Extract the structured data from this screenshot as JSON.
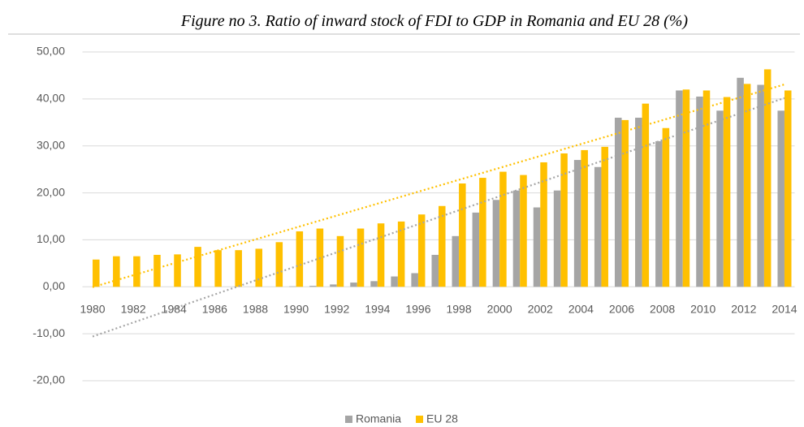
{
  "chart_data": {
    "type": "bar",
    "title": "Figure no 3. Ratio of inward stock of FDI to GDP in Romania and EU 28 (%)",
    "categories": [
      "1980",
      null,
      "1982",
      null,
      "1984",
      null,
      "1986",
      null,
      "1988",
      null,
      "1990",
      null,
      "1992",
      null,
      "1994",
      null,
      "1996",
      null,
      "1998",
      null,
      "2000",
      null,
      "2002",
      null,
      "2004",
      null,
      "2006",
      null,
      "2008",
      null,
      "2010",
      null,
      "2012",
      null,
      "2014"
    ],
    "series": [
      {
        "name": "Romania",
        "color": "#a5a5a5",
        "values": [
          0,
          0,
          0,
          0,
          0,
          0,
          0,
          0,
          0,
          0,
          0.1,
          0.2,
          0.5,
          0.9,
          1.2,
          2.2,
          2.9,
          6.8,
          10.8,
          15.8,
          18.5,
          20.5,
          16.9,
          20.5,
          27,
          25.5,
          36,
          36,
          31,
          41.8,
          40.5,
          37.5,
          44.5,
          43,
          37.5
        ]
      },
      {
        "name": "EU 28",
        "color": "#ffc000",
        "values": [
          5.8,
          6.5,
          6.5,
          6.8,
          6.9,
          8.5,
          7.8,
          7.8,
          8.1,
          9.5,
          11.8,
          12.4,
          10.8,
          12.4,
          13.5,
          13.9,
          15.4,
          17.2,
          22.0,
          23.2,
          24.5,
          23.8,
          26.5,
          28.4,
          29.1,
          29.8,
          35.5,
          39,
          33.8,
          42,
          41.8,
          40.4,
          43.2,
          46.3,
          41.8
        ]
      }
    ],
    "ylim": [
      -20,
      50
    ],
    "yticks": [
      {
        "value": -20,
        "label": "-20,00"
      },
      {
        "value": -10,
        "label": "-10,00"
      },
      {
        "value": 0,
        "label": "0,00"
      },
      {
        "value": 10,
        "label": "10,00"
      },
      {
        "value": 20,
        "label": "20,00"
      },
      {
        "value": 30,
        "label": "30,00"
      },
      {
        "value": 40,
        "label": "40,00"
      },
      {
        "value": 50,
        "label": "50,00"
      }
    ],
    "grid": true,
    "trendline": true,
    "legend": "bottom"
  }
}
